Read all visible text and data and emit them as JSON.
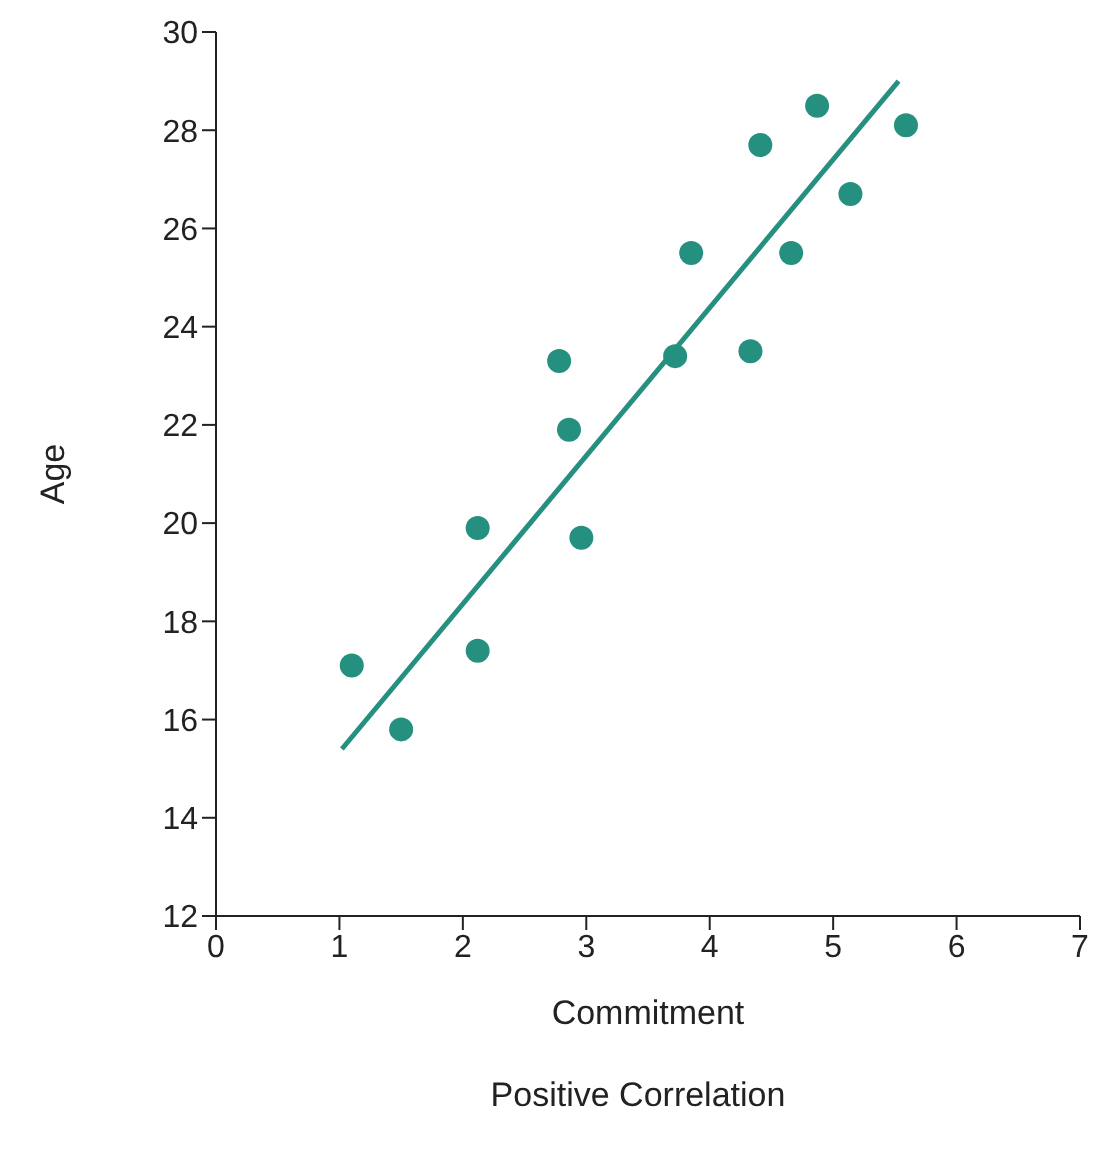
{
  "chart_data": {
    "type": "scatter",
    "xlabel": "Commitment",
    "ylabel": "Age",
    "annotations": [
      "Positive Correlation"
    ],
    "xlim": [
      0,
      7
    ],
    "xticks": [
      0,
      1,
      2,
      3,
      4,
      5,
      6,
      7
    ],
    "ylim": [
      12,
      30
    ],
    "yticks": [
      12,
      14,
      16,
      18,
      20,
      22,
      24,
      26,
      28,
      30
    ],
    "series": [
      {
        "color": "#25907f",
        "marker": "circle",
        "x": [
          1.1,
          1.5,
          2.12,
          2.12,
          2.78,
          2.86,
          2.96,
          3.72,
          3.85,
          4.33,
          4.41,
          4.66,
          4.87,
          5.14,
          5.59
        ],
        "values": [
          17.1,
          15.8,
          19.9,
          17.4,
          23.3,
          21.9,
          19.7,
          23.4,
          25.5,
          23.5,
          27.7,
          25.5,
          28.5,
          26.7,
          28.1
        ]
      },
      {
        "type": "line",
        "color": "#25907f",
        "marker": "none",
        "line_style": "solid",
        "x": [
          1.02,
          5.53
        ],
        "values": [
          15.4,
          29.0
        ]
      }
    ]
  }
}
